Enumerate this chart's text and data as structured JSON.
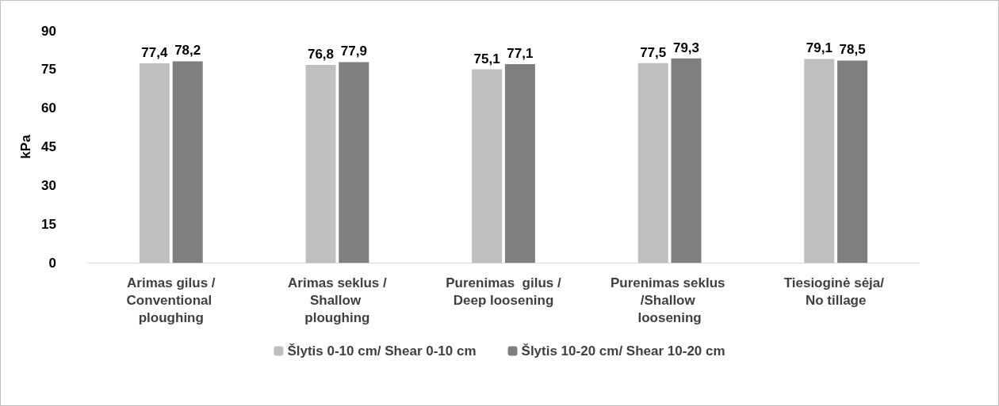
{
  "chart_data": {
    "type": "bar",
    "ylabel": "kPa",
    "categories": [
      "Arimas gilus /Conventional ploughing",
      "Arimas seklus /Shallow ploughing",
      "Purenimas  gilus /Deep loosening",
      "Purenimas seklus /Shallow loosening",
      "Tiesioginė sėja/ No tillage"
    ],
    "series": [
      {
        "name": "Šlytis 0-10 cm/ Shear 0-10 cm",
        "color": "#bfbfbf",
        "values": [
          77.4,
          76.8,
          75.1,
          77.5,
          79.1
        ],
        "value_labels": [
          "77,4",
          "76,8",
          "75,1",
          "77,5",
          "79,1"
        ]
      },
      {
        "name": "Šlytis 10-20 cm/ Shear 10-20 cm",
        "color": "#7f7f7f",
        "values": [
          78.2,
          77.9,
          77.1,
          79.3,
          78.5
        ],
        "value_labels": [
          "78,2",
          "77,9",
          "77,1",
          "79,3",
          "78,5"
        ]
      }
    ],
    "ylim": [
      0,
      90
    ],
    "yticks": [
      0,
      15,
      30,
      45,
      60,
      75,
      90
    ],
    "grid": false,
    "legend": "bottom"
  }
}
